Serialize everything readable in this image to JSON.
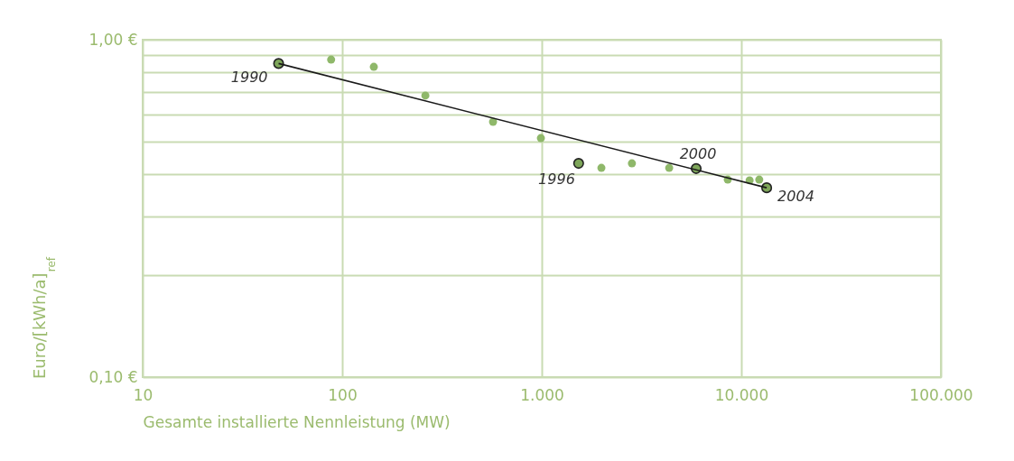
{
  "chart_data": {
    "type": "scatter",
    "xlabel": "Gesamte installierte Nennleistung (MW)",
    "ylabel": "Euro/[kWh/a]$_{ref}$",
    "log": "xy",
    "xlim": [
      10,
      100000
    ],
    "xticks": [
      10,
      {
        "value": 100,
        "label": "100"
      },
      {
        "value": 1000,
        "label": "1.000"
      },
      {
        "value": 10000,
        "label": "10.000"
      },
      {
        "value": 100000,
        "label": "100.000"
      }
    ],
    "ylim": [
      0.1,
      1.0
    ],
    "yticks": [
      {
        "value": 0.1,
        "label": "0,10 €"
      },
      {
        "value": 0.2,
        "label": null
      },
      {
        "value": 0.3,
        "label": null
      },
      {
        "value": 0.4,
        "label": null
      },
      {
        "value": 0.5,
        "label": null
      },
      {
        "value": 0.6,
        "label": null
      },
      {
        "value": 0.7,
        "label": null
      },
      {
        "value": 0.8,
        "label": null
      },
      {
        "value": 0.9,
        "label": null
      },
      {
        "value": 1.0,
        "label": "1,00 €"
      }
    ],
    "grid": true,
    "marker": "circle",
    "series": [
      {
        "type": "line",
        "marker": "none",
        "color": "#1a1a1a",
        "x": [
          48,
          13400
        ],
        "values": [
          0.85,
          0.364
        ]
      },
      {
        "color": "#8fb86a",
        "x": [
          88,
          144,
          261,
          570,
          990,
          1990,
          2830,
          4350,
          8550,
          11000,
          12300
        ],
        "values": [
          0.873,
          0.831,
          0.683,
          0.571,
          0.511,
          0.417,
          0.43,
          0.417,
          0.385,
          0.383,
          0.385
        ]
      },
      {
        "color": "#7ea65a",
        "x": [
          48,
          1530,
          5940,
          13400
        ],
        "values": [
          0.85,
          0.43,
          0.415,
          0.364
        ]
      }
    ],
    "annotations": [
      {
        "text": "1990",
        "x": 48,
        "y": 0.85
      },
      {
        "text": "1996",
        "x": 1530,
        "y": 0.43
      },
      {
        "text": "2000",
        "x": 5940,
        "y": 0.415
      },
      {
        "text": "2004",
        "x": 13400,
        "y": 0.364
      }
    ]
  }
}
